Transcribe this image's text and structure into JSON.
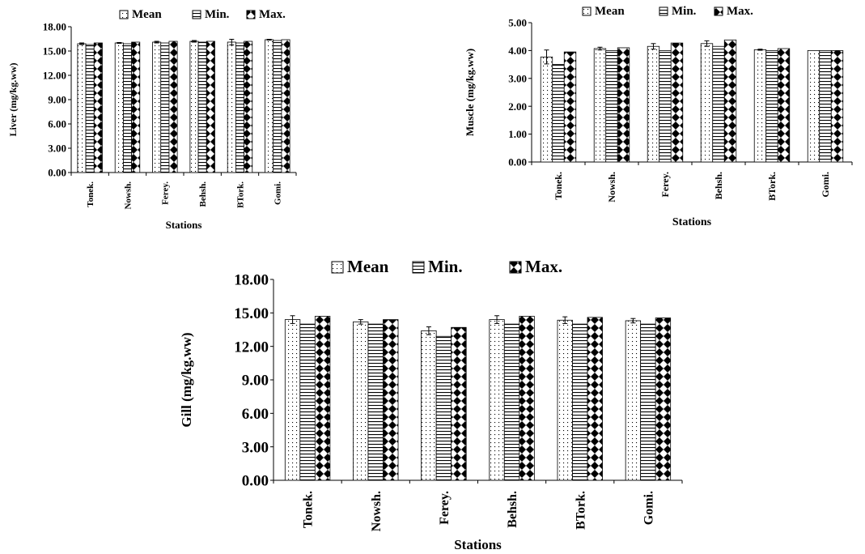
{
  "legend": [
    {
      "key": "mean",
      "label": "Mean"
    },
    {
      "key": "min",
      "label": "Min."
    },
    {
      "key": "max",
      "label": "Max."
    }
  ],
  "chart_data": [
    {
      "id": "liver",
      "type": "bar",
      "title": "",
      "xlabel": "Stations",
      "ylabel": "Liver (mg/kg.ww)",
      "ylim": [
        0,
        18
      ],
      "yticks": [
        "0.00",
        "3.00",
        "6.00",
        "9.00",
        "12.00",
        "15.00",
        "18.00"
      ],
      "categories": [
        "Tonek.",
        "Nowsh.",
        "Ferey.",
        "Behsh.",
        "BTork.",
        "Gomi."
      ],
      "legend_position": "top",
      "series": [
        {
          "name": "Mean",
          "values": [
            15.9,
            16.0,
            16.1,
            16.2,
            16.1,
            16.4
          ],
          "err": [
            0.1,
            0.05,
            0.1,
            0.1,
            0.35,
            0.05
          ]
        },
        {
          "name": "Min.",
          "values": [
            15.8,
            15.9,
            16.0,
            16.1,
            16.0,
            16.3
          ],
          "err": null
        },
        {
          "name": "Max.",
          "values": [
            16.0,
            16.1,
            16.2,
            16.2,
            16.2,
            16.4
          ],
          "err": null
        }
      ]
    },
    {
      "id": "muscle",
      "type": "bar",
      "title": "",
      "xlabel": "Stations",
      "ylabel": "Muscle (mg/kg.ww)",
      "ylim": [
        0,
        5
      ],
      "yticks": [
        "0.00",
        "1.00",
        "2.00",
        "3.00",
        "4.00",
        "5.00"
      ],
      "categories": [
        "Tonek.",
        "Nowsh.",
        "Ferey.",
        "Behsh.",
        "BTork.",
        "Gomi."
      ],
      "legend_position": "top",
      "series": [
        {
          "name": "Mean",
          "values": [
            3.77,
            4.07,
            4.15,
            4.25,
            4.03,
            4.0
          ],
          "err": [
            0.25,
            0.05,
            0.1,
            0.1,
            0.02,
            0.0
          ]
        },
        {
          "name": "Min.",
          "values": [
            3.5,
            4.0,
            4.0,
            4.15,
            4.0,
            4.0
          ],
          "err": null
        },
        {
          "name": "Max.",
          "values": [
            3.95,
            4.1,
            4.27,
            4.38,
            4.07,
            4.0
          ],
          "err": null
        }
      ]
    },
    {
      "id": "gill",
      "type": "bar",
      "title": "",
      "xlabel": "Stations",
      "ylabel": "Gill (mg/kg.ww)",
      "ylim": [
        0,
        18
      ],
      "yticks": [
        "0.00",
        "3.00",
        "6.00",
        "9.00",
        "12.00",
        "15.00",
        "18.00"
      ],
      "categories": [
        "Tonek.",
        "Nowsh.",
        "Ferey.",
        "Behsh.",
        "BTork.",
        "Gomi."
      ],
      "legend_position": "top",
      "series": [
        {
          "name": "Mean",
          "values": [
            14.4,
            14.2,
            13.4,
            14.4,
            14.35,
            14.3
          ],
          "err": [
            0.35,
            0.2,
            0.35,
            0.35,
            0.3,
            0.2
          ]
        },
        {
          "name": "Min.",
          "values": [
            14.0,
            14.0,
            12.9,
            14.0,
            14.0,
            14.0
          ],
          "err": null
        },
        {
          "name": "Max.",
          "values": [
            14.7,
            14.4,
            13.7,
            14.7,
            14.6,
            14.55
          ],
          "err": null
        }
      ]
    }
  ]
}
